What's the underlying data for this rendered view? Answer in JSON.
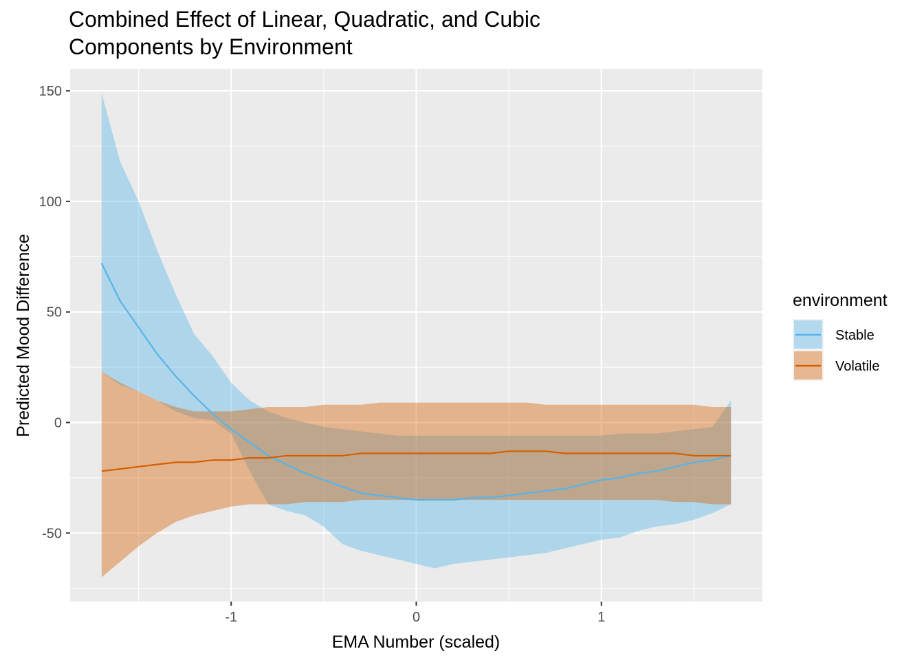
{
  "chart_data": {
    "type": "line",
    "title_line1": "Combined Effect of Linear, Quadratic, and Cubic",
    "title_line2": "Components by Environment",
    "xlabel": "EMA Number (scaled)",
    "ylabel": "Predicted Mood Difference",
    "xlim": [
      -1.87,
      1.87
    ],
    "ylim": [
      -81,
      160
    ],
    "x_ticks": [
      -1,
      0,
      1
    ],
    "x_tick_labels": [
      "-1",
      "0",
      "1"
    ],
    "y_ticks": [
      -50,
      0,
      50,
      100,
      150
    ],
    "y_tick_labels": [
      "-50",
      "0",
      "50",
      "100",
      "150"
    ],
    "grid": true,
    "legend": {
      "title": "environment",
      "position": "right"
    },
    "series": [
      {
        "name": "Stable",
        "color": "#56B4E9",
        "x": [
          -1.7,
          -1.6,
          -1.5,
          -1.4,
          -1.3,
          -1.2,
          -1.1,
          -1.0,
          -0.9,
          -0.8,
          -0.7,
          -0.6,
          -0.5,
          -0.4,
          -0.3,
          -0.2,
          -0.1,
          0.0,
          0.1,
          0.2,
          0.3,
          0.4,
          0.5,
          0.6,
          0.7,
          0.8,
          0.9,
          1.0,
          1.1,
          1.2,
          1.3,
          1.4,
          1.5,
          1.6,
          1.7
        ],
        "y": [
          72,
          55,
          43,
          31,
          21,
          12,
          4,
          -3,
          -9,
          -15,
          -19,
          -23,
          -26,
          -29,
          -32,
          -33,
          -34,
          -35,
          -35,
          -35,
          -34,
          -34,
          -33,
          -32,
          -31,
          -30,
          -28,
          -26,
          -25,
          -23,
          -22,
          -20,
          -18,
          -17,
          -15
        ],
        "upper": [
          149,
          118,
          100,
          78,
          58,
          40,
          30,
          18,
          10,
          5,
          2,
          0,
          -2,
          -3,
          -4,
          -5,
          -6,
          -6,
          -6,
          -6,
          -6,
          -6,
          -6,
          -6,
          -6,
          -6,
          -6,
          -6,
          -5,
          -5,
          -5,
          -4,
          -3,
          -2,
          10
        ],
        "lower": [
          23,
          17,
          14,
          10,
          5,
          2,
          1,
          -5,
          -22,
          -37,
          -40,
          -42,
          -47,
          -55,
          -58,
          -60,
          -62,
          -64,
          -66,
          -64,
          -63,
          -62,
          -61,
          -60,
          -59,
          -57,
          -55,
          -53,
          -52,
          -49,
          -47,
          -46,
          -44,
          -41,
          -37
        ]
      },
      {
        "name": "Volatile",
        "color": "#D55E00",
        "x": [
          -1.7,
          -1.6,
          -1.5,
          -1.4,
          -1.3,
          -1.2,
          -1.1,
          -1.0,
          -0.9,
          -0.8,
          -0.7,
          -0.6,
          -0.5,
          -0.4,
          -0.3,
          -0.2,
          -0.1,
          0.0,
          0.1,
          0.2,
          0.3,
          0.4,
          0.5,
          0.6,
          0.7,
          0.8,
          0.9,
          1.0,
          1.1,
          1.2,
          1.3,
          1.4,
          1.5,
          1.6,
          1.7
        ],
        "y": [
          -22,
          -21,
          -20,
          -19,
          -18,
          -18,
          -17,
          -17,
          -16,
          -16,
          -15,
          -15,
          -15,
          -15,
          -14,
          -14,
          -14,
          -14,
          -14,
          -14,
          -14,
          -14,
          -13,
          -13,
          -13,
          -14,
          -14,
          -14,
          -14,
          -14,
          -14,
          -14,
          -15,
          -15,
          -15
        ],
        "upper": [
          23,
          18,
          14,
          10,
          7,
          5,
          5,
          5,
          6,
          7,
          7,
          7,
          8,
          8,
          8,
          9,
          9,
          9,
          9,
          9,
          9,
          9,
          9,
          9,
          8,
          8,
          8,
          8,
          8,
          8,
          8,
          8,
          8,
          7,
          7
        ],
        "lower": [
          -70,
          -63,
          -56,
          -50,
          -45,
          -42,
          -40,
          -38,
          -37,
          -37,
          -37,
          -36,
          -36,
          -36,
          -35,
          -35,
          -35,
          -35,
          -35,
          -35,
          -35,
          -35,
          -35,
          -35,
          -35,
          -35,
          -35,
          -35,
          -35,
          -35,
          -35,
          -36,
          -36,
          -37,
          -37
        ]
      }
    ]
  }
}
